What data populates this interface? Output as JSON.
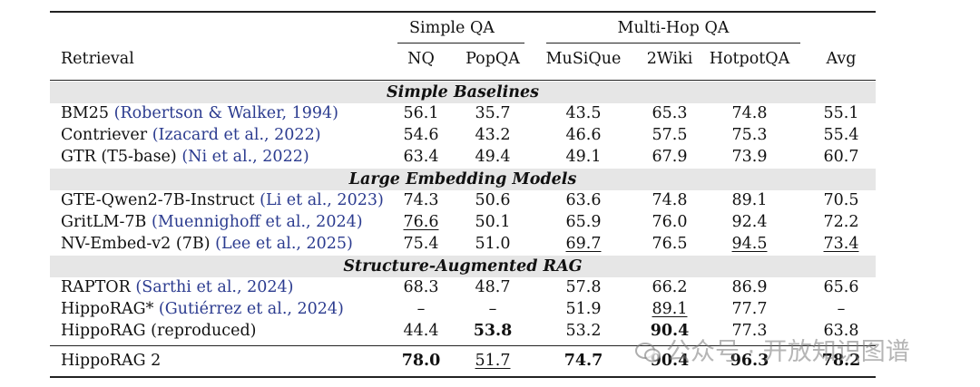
{
  "header": {
    "groups": [
      {
        "label": "Simple QA"
      },
      {
        "label": "Multi-Hop QA"
      }
    ],
    "retrieval_label": "Retrieval",
    "columns": [
      "NQ",
      "PopQA",
      "MuSiQue",
      "2Wiki",
      "HotpotQA",
      "Avg"
    ]
  },
  "sections": [
    {
      "title": "Simple Baselines",
      "rows": [
        {
          "name": "BM25",
          "cite": "(Robertson & Walker, 1994)",
          "values": [
            "56.1",
            "35.7",
            "43.5",
            "65.3",
            "74.8",
            "55.1"
          ],
          "bold": [],
          "underline": []
        },
        {
          "name": "Contriever",
          "cite": "(Izacard et al., 2022)",
          "values": [
            "54.6",
            "43.2",
            "46.6",
            "57.5",
            "75.3",
            "55.4"
          ],
          "bold": [],
          "underline": []
        },
        {
          "name": "GTR (T5-base)",
          "cite": "(Ni et al., 2022)",
          "values": [
            "63.4",
            "49.4",
            "49.1",
            "67.9",
            "73.9",
            "60.7"
          ],
          "bold": [],
          "underline": []
        }
      ]
    },
    {
      "title": "Large Embedding Models",
      "rows": [
        {
          "name": "GTE-Qwen2-7B-Instruct",
          "cite": "(Li et al., 2023)",
          "values": [
            "74.3",
            "50.6",
            "63.6",
            "74.8",
            "89.1",
            "70.5"
          ],
          "bold": [],
          "underline": []
        },
        {
          "name": "GritLM-7B",
          "cite": "(Muennighoff et al., 2024)",
          "values": [
            "76.6",
            "50.1",
            "65.9",
            "76.0",
            "92.4",
            "72.2"
          ],
          "bold": [],
          "underline": [
            0
          ]
        },
        {
          "name": "NV-Embed-v2 (7B)",
          "cite": "(Lee et al., 2025)",
          "values": [
            "75.4",
            "51.0",
            "69.7",
            "76.5",
            "94.5",
            "73.4"
          ],
          "bold": [],
          "underline": [
            2,
            4,
            5
          ]
        }
      ]
    },
    {
      "title": "Structure-Augmented RAG",
      "rows": [
        {
          "name": "RAPTOR",
          "cite": "(Sarthi et al., 2024)",
          "values": [
            "68.3",
            "48.7",
            "57.8",
            "66.2",
            "86.9",
            "65.6"
          ],
          "bold": [],
          "underline": []
        },
        {
          "name": "HippoRAG*",
          "cite": "(Gutiérrez et al., 2024)",
          "values": [
            "–",
            "–",
            "51.9",
            "89.1",
            "77.7",
            "–"
          ],
          "bold": [],
          "underline": [
            3
          ]
        },
        {
          "name": "HippoRAG (reproduced)",
          "cite": "",
          "values": [
            "44.4",
            "53.8",
            "53.2",
            "90.4",
            "77.3",
            "63.8"
          ],
          "bold": [
            1,
            3
          ],
          "underline": []
        }
      ]
    }
  ],
  "final_row": {
    "name": "HippoRAG 2",
    "cite": "",
    "values": [
      "78.0",
      "51.7",
      "74.7",
      "90.4",
      "96.3",
      "78.2"
    ],
    "bold": [
      0,
      2,
      3,
      4,
      5
    ],
    "underline": [
      1
    ]
  },
  "watermark": "公众号 · 开放知识图谱"
}
